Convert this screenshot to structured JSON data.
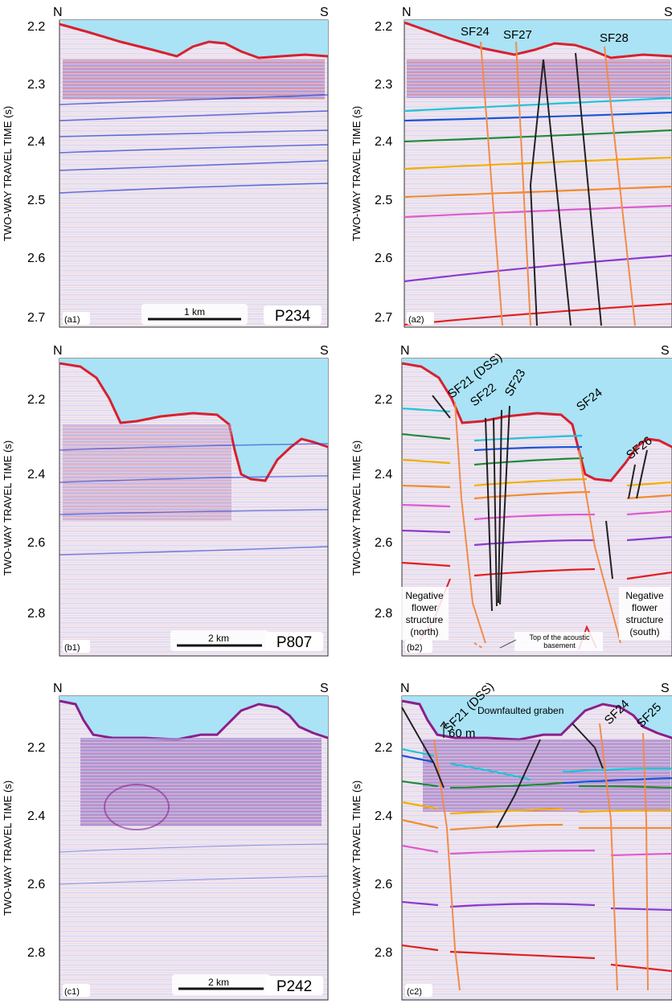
{
  "colors": {
    "water": "#a9e3f5",
    "seismic_bg": "#efe9f2",
    "fault_orange": "#f08c4a",
    "fault_black": "#222222",
    "horizons": [
      "#22c4d8",
      "#1a55d8",
      "#1f8a3a",
      "#f0b000",
      "#f08c30",
      "#e05ad0",
      "#8a3ad0",
      "#e02020"
    ]
  },
  "axis_title": "TWO-WAY TRAVEL TIME (s)",
  "direction": {
    "north": "N",
    "south": "S"
  },
  "panels": [
    {
      "id": "a1",
      "tag": "(a1)",
      "ticks": [
        "2.2",
        "2.3",
        "2.4",
        "2.5",
        "2.6",
        "2.7"
      ],
      "scale_label": "1 km",
      "profile": "P234"
    },
    {
      "id": "a2",
      "tag": "(a2)",
      "ticks": [
        "2.2",
        "2.3",
        "2.4",
        "2.5",
        "2.6",
        "2.7"
      ],
      "faults": [
        "SF24",
        "SF27",
        "SF28"
      ]
    },
    {
      "id": "b1",
      "tag": "(b1)",
      "ticks": [
        "2.2",
        "2.4",
        "2.6",
        "2.8"
      ],
      "scale_label": "2 km",
      "profile": "P807"
    },
    {
      "id": "b2",
      "tag": "(b2)",
      "ticks": [
        "2.2",
        "2.4",
        "2.6",
        "2.8"
      ],
      "faults": [
        "SF21 (DSS)",
        "SF22",
        "SF23",
        "SF24",
        "SF26"
      ],
      "notes": {
        "north": [
          "Negative",
          "flower",
          "structure",
          "(north)"
        ],
        "south": [
          "Negative",
          "flower",
          "structure",
          "(south)"
        ],
        "basement": [
          "Top of the acoustic",
          "basement"
        ]
      }
    },
    {
      "id": "c1",
      "tag": "(c1)",
      "ticks": [
        "2.2",
        "2.4",
        "2.6",
        "2.8"
      ],
      "scale_label": "2 km",
      "profile": "P242"
    },
    {
      "id": "c2",
      "tag": "(c2)",
      "ticks": [
        "2.2",
        "2.4",
        "2.6",
        "2.8"
      ],
      "faults": [
        "SF21 (DSS)",
        "SF24",
        "SF25"
      ],
      "notes": {
        "graben": "Downfaulted graben",
        "throw": "60 m"
      }
    }
  ]
}
